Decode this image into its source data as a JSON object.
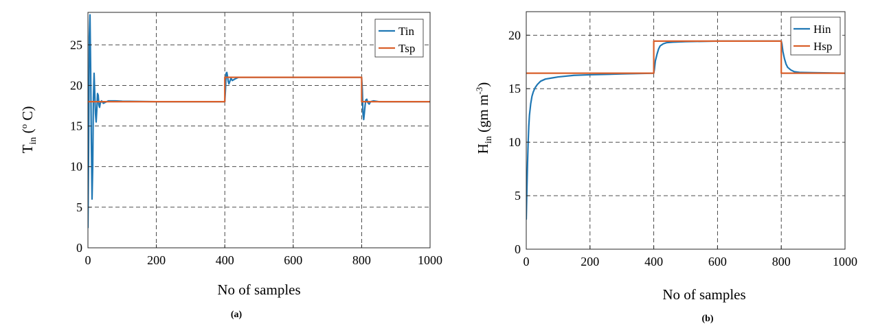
{
  "colors": {
    "series1": "#1f77b4",
    "series2": "#d95f2a"
  },
  "chart_data": [
    {
      "type": "line",
      "panel_label": "(a)",
      "xlabel": "No of samples",
      "ylabel": {
        "main": "T",
        "sub": "in",
        "rest": " (",
        "sup": "o",
        "tail": " C)"
      },
      "xlim": [
        0,
        1000
      ],
      "ylim": [
        0,
        29
      ],
      "xticks": [
        0,
        200,
        400,
        600,
        800,
        1000
      ],
      "yticks": [
        0,
        5,
        10,
        15,
        20,
        25
      ],
      "grid": true,
      "legend_position": "top-right",
      "series": [
        {
          "name": "Tin",
          "points": [
            [
              0,
              2.5
            ],
            [
              2,
              12
            ],
            [
              4,
              26
            ],
            [
              6,
              28.7
            ],
            [
              8,
              22
            ],
            [
              10,
              13
            ],
            [
              12,
              6
            ],
            [
              14,
              10
            ],
            [
              16,
              18.5
            ],
            [
              18,
              21.5
            ],
            [
              20,
              19
            ],
            [
              22,
              16.5
            ],
            [
              24,
              15.5
            ],
            [
              26,
              17
            ],
            [
              28,
              19
            ],
            [
              30,
              18.8
            ],
            [
              32,
              17.6
            ],
            [
              34,
              17.3
            ],
            [
              36,
              17.8
            ],
            [
              40,
              18.1
            ],
            [
              45,
              17.8
            ],
            [
              50,
              17.9
            ],
            [
              60,
              18.1
            ],
            [
              80,
              18.1
            ],
            [
              100,
              18.05
            ],
            [
              200,
              18
            ],
            [
              400,
              18
            ],
            [
              402,
              19.5
            ],
            [
              404,
              21.5
            ],
            [
              406,
              21.6
            ],
            [
              408,
              21.1
            ],
            [
              410,
              20.5
            ],
            [
              412,
              20.2
            ],
            [
              414,
              20.4
            ],
            [
              418,
              20.9
            ],
            [
              422,
              20.6
            ],
            [
              430,
              20.8
            ],
            [
              440,
              21
            ],
            [
              480,
              21
            ],
            [
              800,
              21
            ],
            [
              802,
              19.5
            ],
            [
              804,
              16.5
            ],
            [
              806,
              15.8
            ],
            [
              808,
              16.6
            ],
            [
              810,
              17.5
            ],
            [
              812,
              18.2
            ],
            [
              815,
              18.3
            ],
            [
              818,
              17.9
            ],
            [
              822,
              17.7
            ],
            [
              826,
              18
            ],
            [
              835,
              18.1
            ],
            [
              850,
              18
            ],
            [
              1000,
              18
            ]
          ]
        },
        {
          "name": "Tsp",
          "points": [
            [
              0,
              18
            ],
            [
              400,
              18
            ],
            [
              400,
              21
            ],
            [
              800,
              21
            ],
            [
              800,
              18
            ],
            [
              1000,
              18
            ]
          ]
        }
      ]
    },
    {
      "type": "line",
      "panel_label": "(b)",
      "xlabel": "No of samples",
      "ylabel": {
        "main": "H",
        "sub": "in",
        "rest": " (gm m",
        "sup": "-3",
        "tail": ")"
      },
      "xlim": [
        0,
        1000
      ],
      "ylim": [
        0,
        22.2
      ],
      "xticks": [
        0,
        200,
        400,
        600,
        800,
        1000
      ],
      "yticks": [
        0,
        5,
        10,
        15,
        20
      ],
      "grid": true,
      "legend_position": "top-right",
      "series": [
        {
          "name": "Hin",
          "points": [
            [
              0,
              2.8
            ],
            [
              2,
              5.5
            ],
            [
              4,
              8
            ],
            [
              6,
              10
            ],
            [
              8,
              11.5
            ],
            [
              10,
              12.5
            ],
            [
              14,
              13.6
            ],
            [
              18,
              14.3
            ],
            [
              22,
              14.7
            ],
            [
              28,
              15.1
            ],
            [
              35,
              15.4
            ],
            [
              45,
              15.7
            ],
            [
              60,
              15.9
            ],
            [
              80,
              16
            ],
            [
              100,
              16.1
            ],
            [
              150,
              16.25
            ],
            [
              200,
              16.3
            ],
            [
              300,
              16.38
            ],
            [
              400,
              16.45
            ],
            [
              402,
              16.8
            ],
            [
              405,
              17.6
            ],
            [
              410,
              18.2
            ],
            [
              415,
              18.7
            ],
            [
              420,
              19
            ],
            [
              430,
              19.2
            ],
            [
              440,
              19.3
            ],
            [
              460,
              19.35
            ],
            [
              500,
              19.4
            ],
            [
              600,
              19.45
            ],
            [
              800,
              19.45
            ],
            [
              802,
              19.2
            ],
            [
              805,
              18.5
            ],
            [
              810,
              17.8
            ],
            [
              815,
              17.3
            ],
            [
              820,
              17
            ],
            [
              830,
              16.75
            ],
            [
              840,
              16.6
            ],
            [
              860,
              16.52
            ],
            [
              900,
              16.5
            ],
            [
              1000,
              16.45
            ]
          ]
        },
        {
          "name": "Hsp",
          "points": [
            [
              0,
              16.45
            ],
            [
              400,
              16.45
            ],
            [
              400,
              19.45
            ],
            [
              800,
              19.45
            ],
            [
              800,
              16.45
            ],
            [
              1000,
              16.45
            ]
          ]
        }
      ]
    }
  ]
}
